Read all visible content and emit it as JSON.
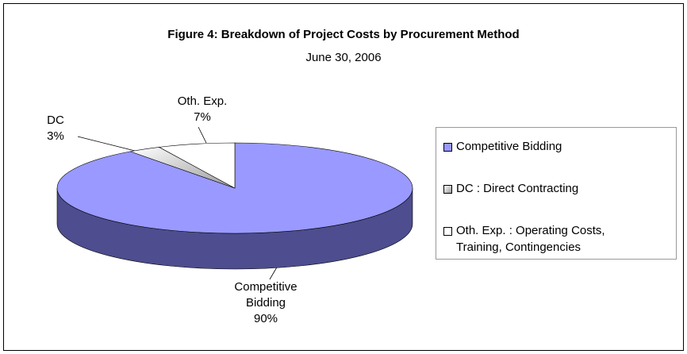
{
  "chart_data": {
    "type": "pie",
    "title": "Figure 4: Breakdown of Project Costs by Procurement Method",
    "subtitle": "June 30, 2006",
    "categories": [
      "Competitive Bidding",
      "DC",
      "Oth. Exp."
    ],
    "values": [
      90,
      3,
      7
    ],
    "value_labels": [
      "90%",
      "3%",
      "7%"
    ],
    "colors": [
      "#9999ff",
      "#d9d9d9",
      "#ffffff"
    ],
    "side_color": "#4d4d8f",
    "legend": [
      "Competitive Bidding",
      "DC : Direct Contracting",
      "Oth. Exp. : Operating Costs, Training, Contingencies"
    ],
    "legend_position": "right"
  }
}
